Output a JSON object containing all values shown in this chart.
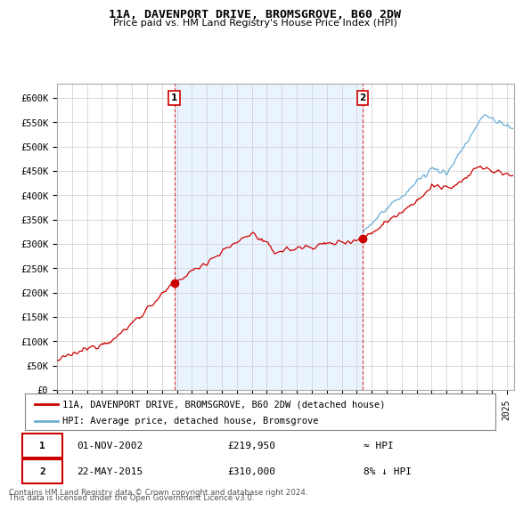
{
  "title": "11A, DAVENPORT DRIVE, BROMSGROVE, B60 2DW",
  "subtitle": "Price paid vs. HM Land Registry's House Price Index (HPI)",
  "ylabel_ticks": [
    "£0",
    "£50K",
    "£100K",
    "£150K",
    "£200K",
    "£250K",
    "£300K",
    "£350K",
    "£400K",
    "£450K",
    "£500K",
    "£550K",
    "£600K"
  ],
  "ylim": [
    0,
    630000
  ],
  "ytick_vals": [
    0,
    50000,
    100000,
    150000,
    200000,
    250000,
    300000,
    350000,
    400000,
    450000,
    500000,
    550000,
    600000
  ],
  "sale1_date": 2002.83,
  "sale1_price": 219950,
  "sale1_label": "1",
  "sale2_date": 2015.38,
  "sale2_price": 310000,
  "sale2_label": "2",
  "hpi_color": "#6baed6",
  "price_color": "#cc0000",
  "vline_color": "#cc0000",
  "fill_color": "#ddeeff",
  "plot_bg": "#ffffff",
  "legend_entry1": "11A, DAVENPORT DRIVE, BROMSGROVE, B60 2DW (detached house)",
  "legend_entry2": "HPI: Average price, detached house, Bromsgrove",
  "note1_date": "01-NOV-2002",
  "note1_price": "£219,950",
  "note1_rel": "≈ HPI",
  "note2_date": "22-MAY-2015",
  "note2_price": "£310,000",
  "note2_rel": "8% ↓ HPI",
  "footer": "Contains HM Land Registry data © Crown copyright and database right 2024.\nThis data is licensed under the Open Government Licence v3.0."
}
